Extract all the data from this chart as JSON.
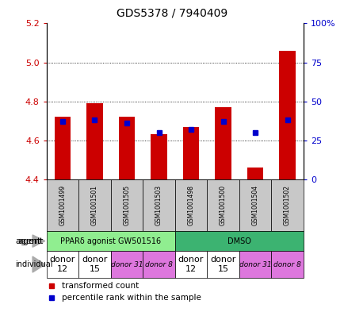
{
  "title": "GDS5378 / 7940409",
  "samples": [
    "GSM1001499",
    "GSM1001501",
    "GSM1001505",
    "GSM1001503",
    "GSM1001498",
    "GSM1001500",
    "GSM1001504",
    "GSM1001502"
  ],
  "red_values": [
    4.72,
    4.79,
    4.72,
    4.63,
    4.67,
    4.77,
    4.46,
    5.06
  ],
  "blue_values": [
    37,
    38,
    36,
    30,
    32,
    37,
    30,
    38
  ],
  "ylim_left": [
    4.4,
    5.2
  ],
  "ylim_right": [
    0,
    100
  ],
  "yticks_left": [
    4.4,
    4.6,
    4.8,
    5.0,
    5.2
  ],
  "yticks_right": [
    0,
    25,
    50,
    75,
    100
  ],
  "agent_groups": [
    {
      "label": "PPARδ agonist GW501516",
      "start": 0,
      "end": 4,
      "color": "#90EE90"
    },
    {
      "label": "DMSO",
      "start": 4,
      "end": 8,
      "color": "#3CB371"
    }
  ],
  "individual_groups": [
    {
      "label": "donor\n12",
      "start": 0,
      "end": 1,
      "color": "#ffffff",
      "fontsize": 8,
      "italic": false
    },
    {
      "label": "donor\n15",
      "start": 1,
      "end": 2,
      "color": "#ffffff",
      "fontsize": 8,
      "italic": false
    },
    {
      "label": "donor 31",
      "start": 2,
      "end": 3,
      "color": "#dd77dd",
      "fontsize": 6.5,
      "italic": true
    },
    {
      "label": "donor 8",
      "start": 3,
      "end": 4,
      "color": "#dd77dd",
      "fontsize": 6.5,
      "italic": true
    },
    {
      "label": "donor\n12",
      "start": 4,
      "end": 5,
      "color": "#ffffff",
      "fontsize": 8,
      "italic": false
    },
    {
      "label": "donor\n15",
      "start": 5,
      "end": 6,
      "color": "#ffffff",
      "fontsize": 8,
      "italic": false
    },
    {
      "label": "donor 31",
      "start": 6,
      "end": 7,
      "color": "#dd77dd",
      "fontsize": 6.5,
      "italic": true
    },
    {
      "label": "donor 8",
      "start": 7,
      "end": 8,
      "color": "#dd77dd",
      "fontsize": 6.5,
      "italic": true
    }
  ],
  "bar_color": "#cc0000",
  "blue_color": "#0000cc",
  "base_value": 4.4,
  "left_axis_color": "#cc0000",
  "right_axis_color": "#0000cc",
  "sample_box_color": "#c8c8c8"
}
